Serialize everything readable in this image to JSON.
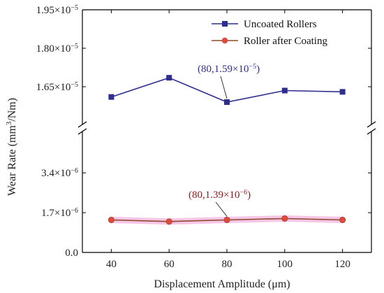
{
  "chart_data": {
    "type": "line",
    "xlabel": "Displacement Amplitude (μm)",
    "ylabel_parts": {
      "main": "Wear Rate (mm",
      "sup": "3",
      "tail": "/Nm)"
    },
    "x": [
      40,
      60,
      80,
      100,
      120
    ],
    "xlim": [
      30,
      130
    ],
    "axis_break": true,
    "upper_ylim": [
      1.5e-05,
      1.95e-05
    ],
    "lower_ylim": [
      0,
      5.2e-06
    ],
    "upper_ticks": [
      {
        "value": 1.65e-05,
        "mant": "1.65×10",
        "exp": "−5"
      },
      {
        "value": 1.8e-05,
        "mant": "1.80×10",
        "exp": "−5"
      },
      {
        "value": 1.95e-05,
        "mant": "1.95×10",
        "exp": "−5"
      }
    ],
    "lower_ticks": [
      {
        "value": 0,
        "mant": "0.0",
        "exp": ""
      },
      {
        "value": 1.7e-06,
        "mant": "1.7×10",
        "exp": "−6"
      },
      {
        "value": 3.4e-06,
        "mant": "3.4×10",
        "exp": "−6"
      }
    ],
    "x_ticks": [
      "40",
      "60",
      "80",
      "100",
      "120"
    ],
    "legend_position": "top-right",
    "series": [
      {
        "name": "Uncoated Rollers",
        "panel": "upper",
        "marker": "square",
        "color": "#2e2e8f",
        "values": [
          1.61e-05,
          1.685e-05,
          1.59e-05,
          1.635e-05,
          1.63e-05
        ]
      },
      {
        "name": "Roller after Coating",
        "panel": "lower",
        "marker": "circle",
        "color": "#e04a3a",
        "line_color": "#8b4a2a",
        "band_color": "#f7c6e6",
        "values": [
          1.39e-06,
          1.32e-06,
          1.39e-06,
          1.45e-06,
          1.39e-06
        ]
      }
    ],
    "annotations": [
      {
        "series": 0,
        "x": 80,
        "prefix": "(80,1.59×10",
        "exp": "−5",
        "suffix": ")"
      },
      {
        "series": 1,
        "x": 80,
        "prefix": "(80,1.39×10",
        "exp": "−6",
        "suffix": ")"
      }
    ]
  }
}
